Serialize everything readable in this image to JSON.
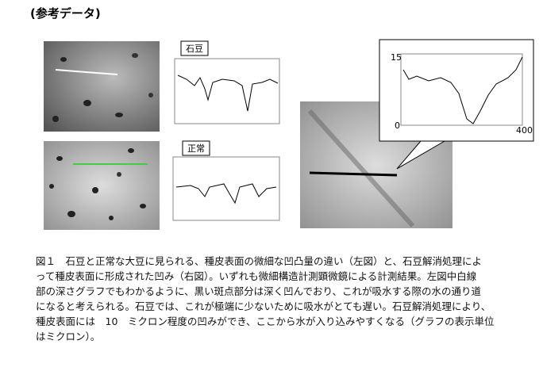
{
  "header": {
    "title": "(参考データ)"
  },
  "figure": {
    "left_top_label": "石豆",
    "left_bottom_label": "正常",
    "right_graph_y_top": "15",
    "right_graph_y_bottom": "0",
    "right_graph_x_right": "400"
  },
  "caption": {
    "lines": [
      "図１　石豆と正常な大豆に見られる、種皮表面の微細な凹凸量の違い（左図）と、石豆解消処理によ",
      "って種皮表面に形成された凹み（右図）。いずれも微細構造計測顕微鏡による計測結果。左図中白線",
      "部の深さグラフでもわかるように、黒い斑点部分は深く凹んでおり、これが吸水する際の水の通り道",
      "になると考えられる。石豆では、これが極端に少ないために吸水がとても遅い。石豆解消処理により、",
      "種皮表面には　10　ミクロン程度の凹みができ、ここから水が入り込みやすくなる（グラフの表示単位",
      "はミクロン）。"
    ]
  }
}
